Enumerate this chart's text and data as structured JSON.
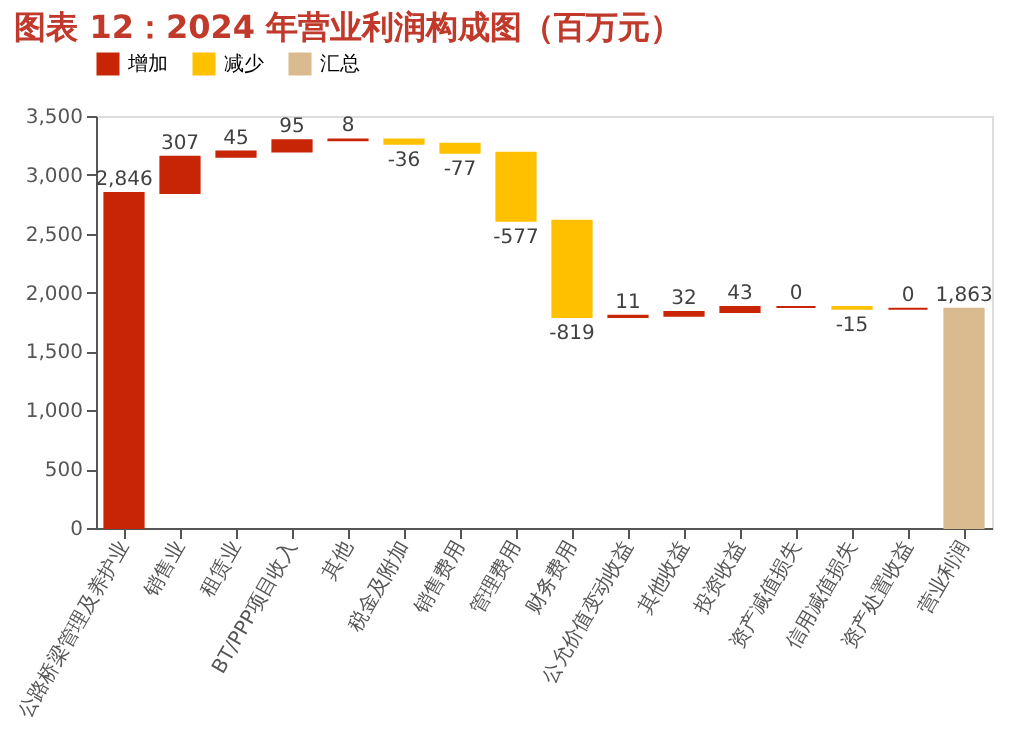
{
  "chart_data": {
    "type": "bar",
    "title": "图表 12：2024 年营业利润构成图（百万元）",
    "categories": [
      "公路桥梁管理及养护业",
      "销售业",
      "租赁业",
      "BT/PPP项目收入",
      "其他",
      "税金及附加",
      "销售费用",
      "管理费用",
      "财务费用",
      "公允价值变动收益",
      "其他收益",
      "投资收益",
      "资产减值损失",
      "信用减值损失",
      "资产处置收益",
      "营业利润"
    ],
    "series": [
      {
        "name": "增加",
        "color": "#c82506",
        "values": [
          2846,
          307,
          45,
          95,
          8,
          null,
          null,
          null,
          null,
          11,
          32,
          43,
          0,
          null,
          0,
          null
        ],
        "base": [
          0,
          2846,
          3153,
          3198,
          3293,
          null,
          null,
          null,
          null,
          1792,
          1803,
          1835,
          1878,
          null,
          1863,
          null
        ],
        "value_labels": [
          "2,846",
          "307",
          "45",
          "95",
          "8",
          null,
          null,
          null,
          null,
          "11",
          "32",
          "43",
          "0",
          null,
          "0",
          null
        ]
      },
      {
        "name": "减少",
        "color": "#ffc000",
        "values": [
          null,
          null,
          null,
          null,
          null,
          -36,
          -77,
          -577,
          -819,
          null,
          null,
          null,
          null,
          -15,
          null,
          null
        ],
        "base": [
          null,
          null,
          null,
          null,
          null,
          3301,
          3265,
          3188,
          2611,
          null,
          null,
          null,
          null,
          1878,
          null,
          null
        ],
        "value_labels": [
          null,
          null,
          null,
          null,
          null,
          "-36",
          "-77",
          "-577",
          "-819",
          null,
          null,
          null,
          null,
          "-15",
          null,
          null
        ]
      },
      {
        "name": "汇总",
        "color": "#d9bb8f",
        "values": [
          null,
          null,
          null,
          null,
          null,
          null,
          null,
          null,
          null,
          null,
          null,
          null,
          null,
          null,
          null,
          1863
        ],
        "base": [
          null,
          null,
          null,
          null,
          null,
          null,
          null,
          null,
          null,
          null,
          null,
          null,
          null,
          null,
          null,
          0
        ],
        "value_labels": [
          null,
          null,
          null,
          null,
          null,
          null,
          null,
          null,
          null,
          null,
          null,
          null,
          null,
          null,
          null,
          "1,863"
        ]
      }
    ],
    "ylim": [
      0,
      3500
    ],
    "yticks": [
      {
        "value": 0,
        "label": "0"
      },
      {
        "value": 500,
        "label": "500"
      },
      {
        "value": 1000,
        "label": "1,000"
      },
      {
        "value": 1500,
        "label": "1,500"
      },
      {
        "value": 2000,
        "label": "2,000"
      },
      {
        "value": 2500,
        "label": "2,500"
      },
      {
        "value": 3000,
        "label": "3,000"
      },
      {
        "value": 3500,
        "label": "3,500"
      }
    ],
    "grid": false,
    "legend": "top"
  }
}
